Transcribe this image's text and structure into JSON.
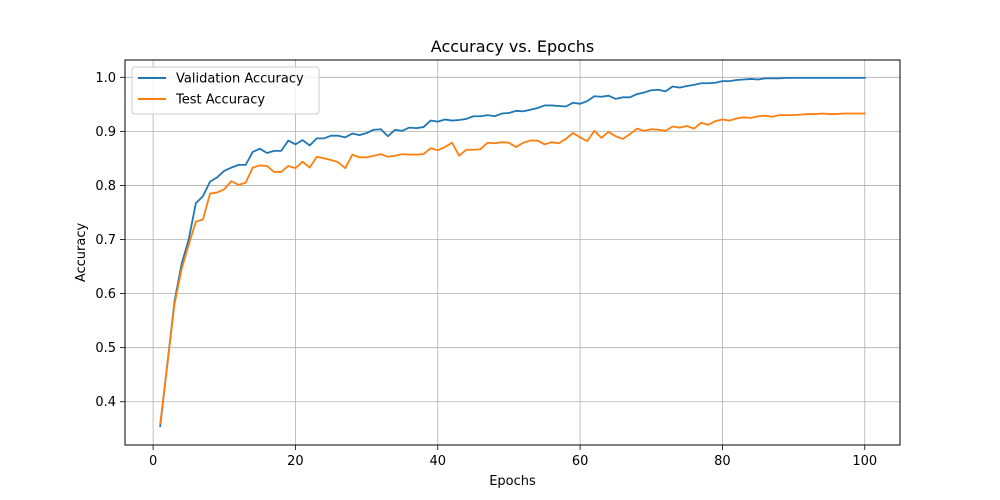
{
  "chart_data": {
    "type": "line",
    "title": "Accuracy vs. Epochs",
    "xlabel": "Epochs",
    "ylabel": "Accuracy",
    "xlim": [
      -3.95,
      104.95
    ],
    "ylim": [
      0.32,
      1.032
    ],
    "xticks": [
      0,
      20,
      40,
      60,
      80,
      100
    ],
    "yticks": [
      0.4,
      0.5,
      0.6,
      0.7,
      0.8,
      0.9,
      1.0
    ],
    "xtick_labels": [
      "0",
      "20",
      "40",
      "60",
      "80",
      "100"
    ],
    "ytick_labels": [
      "0.4",
      "0.5",
      "0.6",
      "0.7",
      "0.8",
      "0.9",
      "1.0"
    ],
    "grid": true,
    "legend_position": "top-left",
    "x": [
      1,
      2,
      3,
      4,
      5,
      6,
      7,
      8,
      9,
      10,
      11,
      12,
      13,
      14,
      15,
      16,
      17,
      18,
      19,
      20,
      21,
      22,
      23,
      24,
      25,
      26,
      27,
      28,
      29,
      30,
      31,
      32,
      33,
      34,
      35,
      36,
      37,
      38,
      39,
      40,
      41,
      42,
      43,
      44,
      45,
      46,
      47,
      48,
      49,
      50,
      51,
      52,
      53,
      54,
      55,
      56,
      57,
      58,
      59,
      60,
      61,
      62,
      63,
      64,
      65,
      66,
      67,
      68,
      69,
      70,
      71,
      72,
      73,
      74,
      75,
      76,
      77,
      78,
      79,
      80,
      81,
      82,
      83,
      84,
      85,
      86,
      87,
      88,
      89,
      90,
      91,
      92,
      93,
      94,
      95,
      96,
      97,
      98,
      99,
      100
    ],
    "series": [
      {
        "name": "Validation Accuracy",
        "color": "#1f77b4",
        "values": [
          0.355,
          0.47,
          0.585,
          0.655,
          0.7,
          0.767,
          0.78,
          0.807,
          0.815,
          0.827,
          0.833,
          0.838,
          0.838,
          0.862,
          0.868,
          0.86,
          0.864,
          0.864,
          0.883,
          0.876,
          0.884,
          0.874,
          0.887,
          0.887,
          0.892,
          0.892,
          0.889,
          0.896,
          0.893,
          0.897,
          0.903,
          0.904,
          0.891,
          0.903,
          0.901,
          0.907,
          0.906,
          0.908,
          0.92,
          0.918,
          0.922,
          0.92,
          0.921,
          0.923,
          0.928,
          0.928,
          0.93,
          0.928,
          0.933,
          0.934,
          0.938,
          0.937,
          0.94,
          0.943,
          0.948,
          0.948,
          0.947,
          0.946,
          0.953,
          0.951,
          0.956,
          0.965,
          0.964,
          0.966,
          0.96,
          0.963,
          0.963,
          0.969,
          0.972,
          0.976,
          0.977,
          0.974,
          0.983,
          0.981,
          0.984,
          0.986,
          0.989,
          0.989,
          0.99,
          0.993,
          0.993,
          0.995,
          0.996,
          0.997,
          0.996,
          0.998,
          0.998,
          0.998,
          0.999,
          0.999,
          0.999,
          0.999,
          0.999,
          0.999,
          0.999,
          0.999,
          0.999,
          0.999,
          0.999,
          0.999
        ]
      },
      {
        "name": "Test Accuracy",
        "color": "#ff7f0e",
        "values": [
          0.36,
          0.468,
          0.58,
          0.645,
          0.69,
          0.733,
          0.737,
          0.785,
          0.787,
          0.793,
          0.808,
          0.801,
          0.805,
          0.833,
          0.837,
          0.836,
          0.825,
          0.825,
          0.836,
          0.832,
          0.844,
          0.833,
          0.853,
          0.85,
          0.847,
          0.843,
          0.832,
          0.857,
          0.852,
          0.852,
          0.855,
          0.858,
          0.853,
          0.855,
          0.858,
          0.857,
          0.857,
          0.858,
          0.869,
          0.865,
          0.871,
          0.879,
          0.855,
          0.866,
          0.866,
          0.867,
          0.879,
          0.878,
          0.88,
          0.879,
          0.871,
          0.879,
          0.883,
          0.883,
          0.876,
          0.88,
          0.878,
          0.886,
          0.897,
          0.889,
          0.882,
          0.901,
          0.888,
          0.899,
          0.891,
          0.886,
          0.895,
          0.905,
          0.901,
          0.904,
          0.903,
          0.901,
          0.909,
          0.907,
          0.91,
          0.905,
          0.916,
          0.912,
          0.919,
          0.922,
          0.92,
          0.924,
          0.926,
          0.925,
          0.928,
          0.929,
          0.927,
          0.93,
          0.93,
          0.93,
          0.931,
          0.932,
          0.932,
          0.933,
          0.932,
          0.932,
          0.933,
          0.933,
          0.933,
          0.933
        ]
      }
    ]
  }
}
